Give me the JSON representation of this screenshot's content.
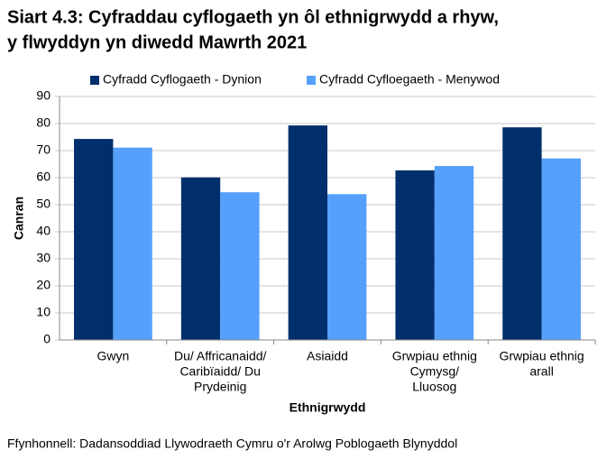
{
  "chart_data": {
    "type": "bar",
    "title": [
      "Siart 4.3: Cyfraddau cyflogaeth yn ôl ethnigrwydd a rhyw,",
      "y flwyddyn yn diwedd Mawrth 2021"
    ],
    "categories": [
      [
        "Gwyn"
      ],
      [
        "Du/ Affricanaidd/",
        "Caribïaidd/ Du",
        "Prydeinig"
      ],
      [
        "Asiaidd"
      ],
      [
        "Grwpiau ethnig",
        "Cymysg/",
        "Lluosog"
      ],
      [
        "Grwpiau ethnig",
        "arall"
      ]
    ],
    "series": [
      {
        "name": "Cyfradd Cyflogaeth - Dynion",
        "color": "#002f6c",
        "values": [
          74.3,
          60.1,
          79.3,
          62.7,
          78.6
        ]
      },
      {
        "name": "Cyfradd Cyfloegaeth - Menywod",
        "color": "#55a0fb",
        "values": [
          71.1,
          54.6,
          53.9,
          64.3,
          67.1
        ]
      }
    ],
    "ylim": [
      0,
      90
    ],
    "yticks": [
      0,
      10,
      20,
      30,
      40,
      50,
      60,
      70,
      80,
      90
    ],
    "grid": true,
    "y_label": "Canran",
    "x_label": "Ethnigrwydd",
    "legend": "top",
    "source": "Ffynhonnell: Dadansoddiad Llywodraeth Cymru o'r Arolwg Poblogaeth Blynyddol"
  }
}
